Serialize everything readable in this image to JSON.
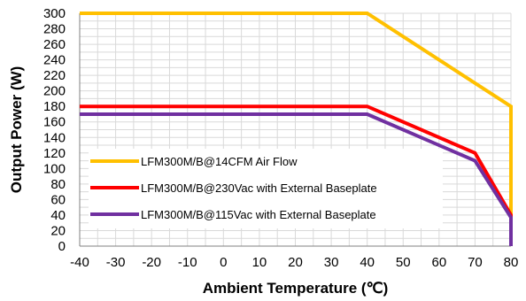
{
  "chart_data": {
    "type": "line",
    "xlabel": "Ambient Temperature (℃)",
    "ylabel": "Output Power (W)",
    "xlim": [
      -40,
      80
    ],
    "ylim": [
      0,
      300
    ],
    "x_ticks": [
      -40,
      -30,
      -20,
      -10,
      0,
      10,
      20,
      30,
      40,
      50,
      60,
      70,
      80
    ],
    "y_ticks": [
      0,
      20,
      40,
      60,
      80,
      100,
      120,
      140,
      160,
      180,
      200,
      220,
      240,
      260,
      280,
      300
    ],
    "grid": true,
    "legend_position": "lower-left",
    "series": [
      {
        "name": "LFM300M/B@14CFM Air Flow",
        "color": "#ffc000",
        "points": [
          [
            -40,
            300
          ],
          [
            40,
            300
          ],
          [
            80,
            180
          ],
          [
            80,
            0
          ]
        ]
      },
      {
        "name": "LFM300M/B@230Vac with External Baseplate",
        "color": "#ff0000",
        "points": [
          [
            -40,
            180
          ],
          [
            40,
            180
          ],
          [
            70,
            120
          ],
          [
            80,
            40
          ],
          [
            80,
            0
          ]
        ]
      },
      {
        "name": "LFM300M/B@115Vac with External Baseplate",
        "color": "#7030a0",
        "points": [
          [
            -40,
            170
          ],
          [
            40,
            170
          ],
          [
            70,
            110
          ],
          [
            80,
            37
          ],
          [
            80,
            0
          ]
        ]
      }
    ]
  }
}
